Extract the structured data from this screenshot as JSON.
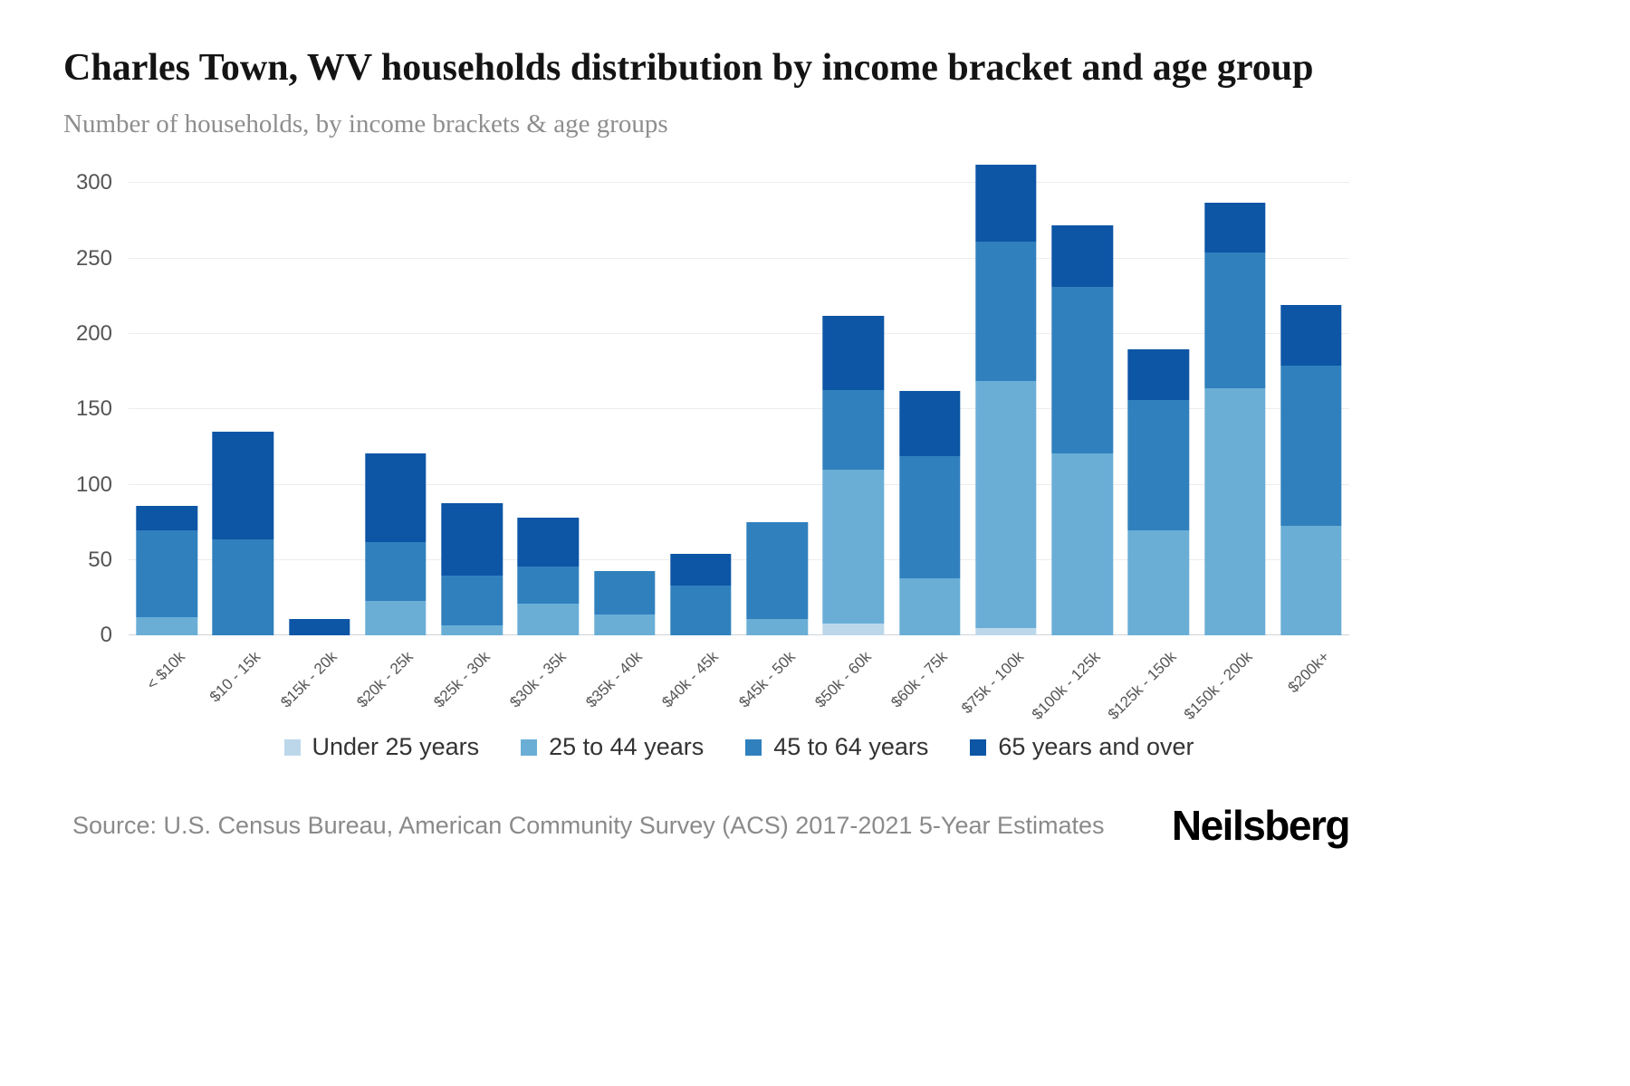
{
  "header": {
    "title": "Charles Town, WV households distribution by income bracket and age group",
    "subtitle": "Number of households, by income brackets & age groups"
  },
  "chart_data": {
    "type": "bar",
    "stacked": true,
    "title": "Charles Town, WV households distribution by income bracket and age group",
    "xlabel": "",
    "ylabel": "Number of households",
    "ylim": [
      0,
      300
    ],
    "yticks": [
      0,
      50,
      100,
      150,
      200,
      250,
      300
    ],
    "grid": true,
    "legend_position": "bottom",
    "categories": [
      "< $10k",
      "$10 - 15k",
      "$15k - 20k",
      "$20k - 25k",
      "$25k - 30k",
      "$30k - 35k",
      "$35k - 40k",
      "$40k - 45k",
      "$45k - 50k",
      "$50k - 60k",
      "$60k - 75k",
      "$75k - 100k",
      "$100k - 125k",
      "$125k - 150k",
      "$150k - 200k",
      "$200k+"
    ],
    "series": [
      {
        "name": "Under 25 years",
        "color": "#bdd7ea",
        "values": [
          0,
          0,
          0,
          0,
          0,
          0,
          0,
          0,
          0,
          8,
          0,
          5,
          0,
          0,
          0,
          0
        ]
      },
      {
        "name": "25 to 44 years",
        "color": "#6aaed6",
        "values": [
          12,
          0,
          0,
          23,
          7,
          21,
          14,
          0,
          11,
          102,
          38,
          164,
          121,
          70,
          164,
          73
        ]
      },
      {
        "name": "45 to 64 years",
        "color": "#3080bd",
        "values": [
          58,
          64,
          0,
          39,
          33,
          25,
          29,
          33,
          64,
          53,
          81,
          92,
          110,
          86,
          90,
          106
        ]
      },
      {
        "name": "65 years and over",
        "color": "#0d55a5",
        "values": [
          16,
          71,
          11,
          59,
          48,
          32,
          0,
          21,
          0,
          49,
          43,
          51,
          41,
          34,
          33,
          40
        ]
      }
    ]
  },
  "footer": {
    "source": "Source: U.S. Census Bureau, American Community Survey (ACS) 2017-2021 5-Year Estimates",
    "brand": "Neilsberg"
  }
}
